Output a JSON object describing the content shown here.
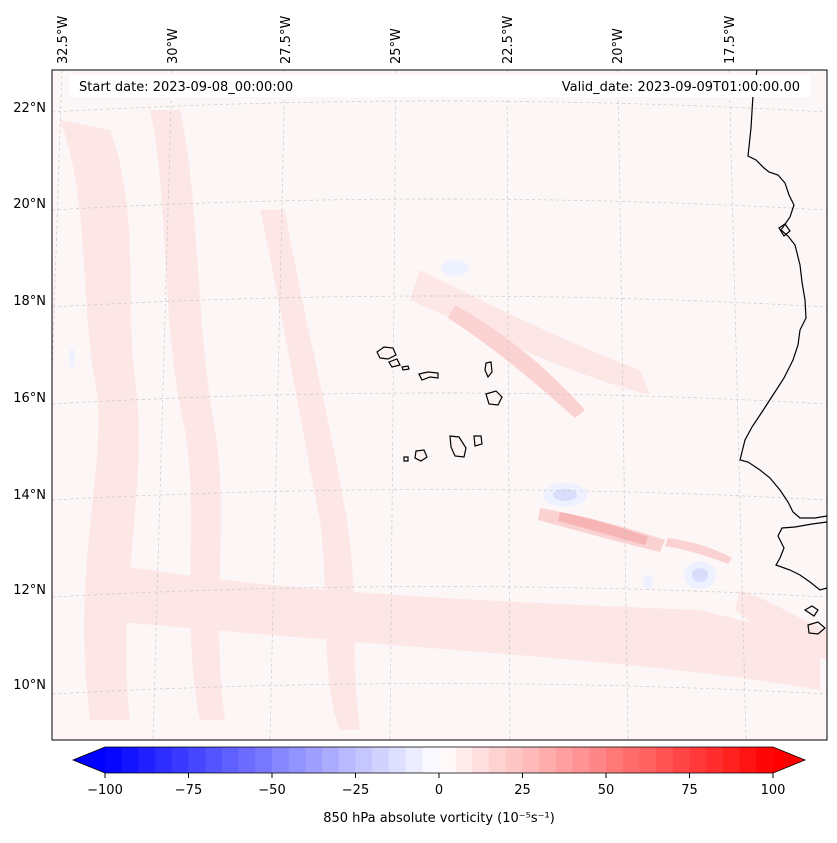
{
  "map": {
    "start_label": "Start date: 2023-09-08_00:00:00",
    "valid_label": "Valid_date: 2023-09-09T01:00:00.00",
    "lon_labels": [
      "32.5°W",
      "30°W",
      "27.5°W",
      "25°W",
      "22.5°W",
      "20°W",
      "17.5°W"
    ],
    "lat_labels": [
      "22°N",
      "20°N",
      "18°N",
      "16°N",
      "14°N",
      "12°N",
      "10°N"
    ],
    "field_colors": {
      "background": "#fdf6f6",
      "weak_pos": "#fde6e6",
      "mid_pos": "#fbd2d2",
      "strong_pos": "#f6b4b4",
      "weak_neg": "#eef1ff",
      "mid_neg": "#d9ddfb"
    }
  },
  "colorbar": {
    "label": "850 hPa absolute vorticity (10⁻⁵s⁻¹)",
    "ticks": [
      "−100",
      "−75",
      "−50",
      "−25",
      "0",
      "25",
      "50",
      "75",
      "100"
    ],
    "min": -100,
    "max": 100,
    "step": 5,
    "low_color": "#0000ff",
    "mid_color": "#ffffff",
    "high_color": "#ff0000"
  }
}
